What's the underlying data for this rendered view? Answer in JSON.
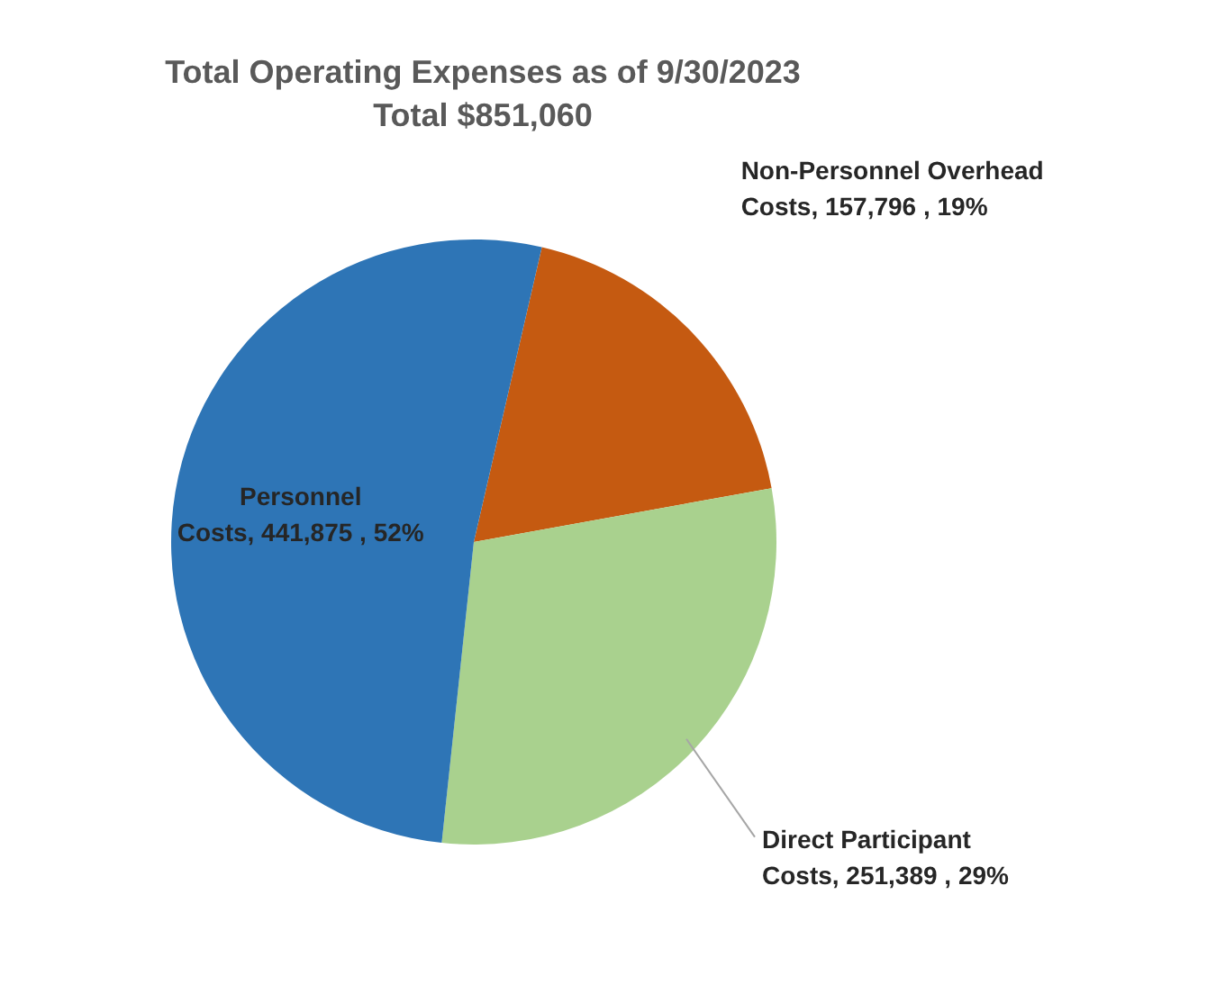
{
  "chart_data": {
    "type": "pie",
    "title": "Total Operating Expenses as of 9/30/2023",
    "subtitle": "Total $851,060",
    "categories": [
      "Non-Personnel Overhead Costs",
      "Direct Participant Costs",
      "Personnel Costs"
    ],
    "values": [
      157796,
      251389,
      441875
    ],
    "colors": [
      "#c55a11",
      "#a9d18e",
      "#2e75b6"
    ],
    "value_labels": [
      "157,796 , 19%",
      "251,389 , 29%",
      "441,875 , 52%"
    ],
    "legend": false
  }
}
